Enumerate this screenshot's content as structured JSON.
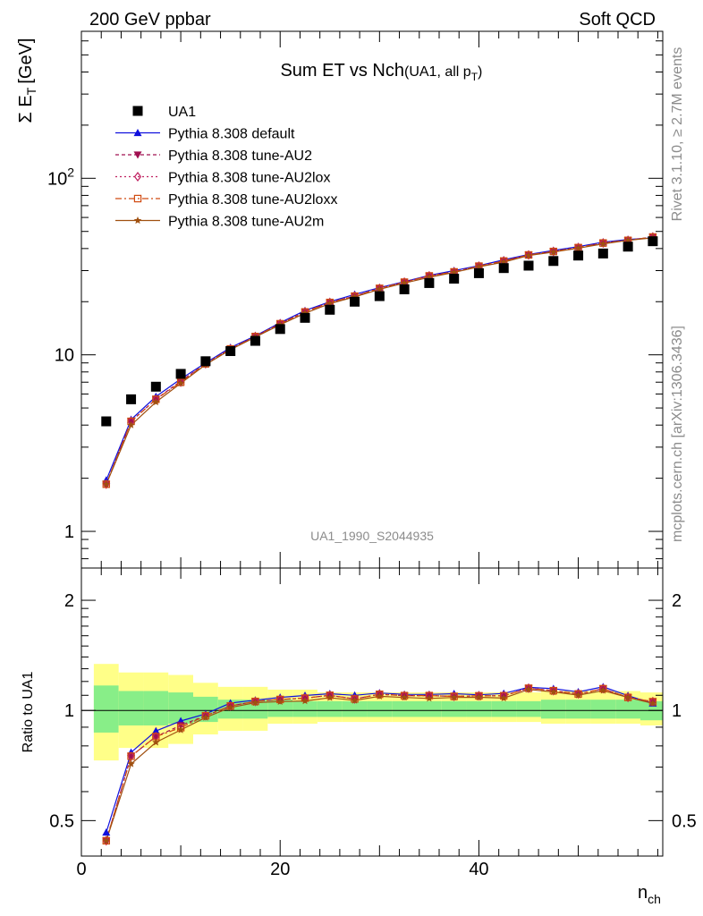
{
  "header": {
    "left": "200 GeV ppbar",
    "right": "Soft QCD"
  },
  "side_text": {
    "rivet": "Rivet 3.1.10, ≥ 2.7M events",
    "mcplots": "mcplots.cern.ch [arXiv:1306.3436]"
  },
  "chart_data": {
    "type": "scatter",
    "title_main": "Sum ET vs Nch",
    "title_sub": "(UA1, all p",
    "title_sub_subscript": "T",
    "title_sub_end": ")",
    "analysis_tag": "UA1_1990_S2044935",
    "ylabel_main": "Σ E",
    "ylabel_sub": "T",
    "ylabel_unit": "[GeV]",
    "ratio_ylabel": "Ratio to UA1",
    "xlabel_main": "n",
    "xlabel_sub": "ch",
    "xlim": [
      0,
      58.5
    ],
    "ylim": [
      0.62,
      680
    ],
    "ylog": true,
    "ratio_ylim": [
      0.4,
      2.45
    ],
    "ratio_ylog": true,
    "x_ticks": [
      "0",
      "20",
      "40"
    ],
    "y_ticks": [
      {
        "v": 1,
        "label": "1"
      },
      {
        "v": 10,
        "label": "10"
      },
      {
        "v": 100,
        "label": "10",
        "sup": "2"
      }
    ],
    "ratio_ticks": [
      {
        "v": 0.5,
        "label": "0.5"
      },
      {
        "v": 1,
        "label": "1"
      },
      {
        "v": 2,
        "label": "2"
      }
    ],
    "x": [
      2.5,
      5,
      7.5,
      10,
      12.5,
      15,
      17.5,
      20,
      22.5,
      25,
      27.5,
      30,
      32.5,
      35,
      37.5,
      40,
      42.5,
      45,
      47.5,
      50,
      52.5,
      55,
      57.5
    ],
    "data": {
      "name": "UA1",
      "values": [
        4.2,
        5.6,
        6.6,
        7.8,
        9.2,
        10.5,
        12.0,
        14.0,
        16.2,
        18.0,
        20.0,
        21.5,
        23.5,
        25.5,
        27.0,
        29.0,
        31.0,
        32.0,
        34.0,
        36.5,
        37.5,
        41.0,
        44.0
      ],
      "band_inner": [
        [
          0.87,
          1.17
        ],
        [
          0.91,
          1.13
        ],
        [
          0.91,
          1.13
        ],
        [
          0.92,
          1.12
        ],
        [
          0.93,
          1.09
        ],
        [
          0.95,
          1.07
        ],
        [
          0.95,
          1.07
        ],
        [
          0.96,
          1.07
        ],
        [
          0.96,
          1.06
        ],
        [
          0.96,
          1.06
        ],
        [
          0.96,
          1.06
        ],
        [
          0.96,
          1.06
        ],
        [
          0.96,
          1.06
        ],
        [
          0.96,
          1.06
        ],
        [
          0.96,
          1.06
        ],
        [
          0.96,
          1.06
        ],
        [
          0.96,
          1.06
        ],
        [
          0.96,
          1.06
        ],
        [
          0.95,
          1.07
        ],
        [
          0.95,
          1.07
        ],
        [
          0.95,
          1.07
        ],
        [
          0.95,
          1.07
        ],
        [
          0.94,
          1.06
        ]
      ],
      "band_outer": [
        [
          0.73,
          1.34
        ],
        [
          0.79,
          1.27
        ],
        [
          0.79,
          1.27
        ],
        [
          0.81,
          1.25
        ],
        [
          0.86,
          1.19
        ],
        [
          0.88,
          1.16
        ],
        [
          0.88,
          1.16
        ],
        [
          0.92,
          1.14
        ],
        [
          0.92,
          1.14
        ],
        [
          0.93,
          1.12
        ],
        [
          0.93,
          1.12
        ],
        [
          0.93,
          1.12
        ],
        [
          0.93,
          1.12
        ],
        [
          0.93,
          1.12
        ],
        [
          0.93,
          1.12
        ],
        [
          0.93,
          1.12
        ],
        [
          0.93,
          1.12
        ],
        [
          0.93,
          1.12
        ],
        [
          0.92,
          1.13
        ],
        [
          0.92,
          1.13
        ],
        [
          0.92,
          1.13
        ],
        [
          0.92,
          1.13
        ],
        [
          0.91,
          1.12
        ]
      ]
    },
    "series": [
      {
        "name": "Pythia 8.308 default",
        "color": "#1010dd",
        "dash": "none",
        "marker": "triangle-up",
        "values": [
          1.95,
          4.3,
          5.8,
          7.3,
          9.0,
          11.0,
          12.8,
          15.2,
          17.8,
          20.0,
          22.0,
          24.0,
          26.0,
          28.2,
          30.0,
          32.0,
          34.5,
          37.0,
          39.0,
          41.0,
          43.5,
          45.0,
          46.0
        ]
      },
      {
        "name": "Pythia 8.308 tune-AU2",
        "color": "#a01050",
        "dash": "4,3",
        "marker": "triangle-down",
        "values": [
          1.85,
          4.2,
          5.6,
          7.1,
          8.9,
          10.8,
          12.7,
          15.0,
          17.5,
          19.8,
          21.5,
          23.8,
          25.8,
          28.0,
          29.5,
          31.8,
          34.0,
          36.8,
          38.5,
          40.5,
          43.0,
          44.5,
          46.5
        ]
      },
      {
        "name": "Pythia 8.308 tune-AU2lox",
        "color": "#c02060",
        "dash": "2,3",
        "marker": "diamond-open",
        "values": [
          1.85,
          4.2,
          5.6,
          7.0,
          8.9,
          10.8,
          12.7,
          15.0,
          17.5,
          19.8,
          21.5,
          23.8,
          25.8,
          28.0,
          29.5,
          31.8,
          34.0,
          36.8,
          38.5,
          40.5,
          43.0,
          44.5,
          46.5
        ]
      },
      {
        "name": "Pythia 8.308 tune-AU2loxx",
        "color": "#d04a10",
        "dash": "7,3,2,3",
        "marker": "square-open",
        "values": [
          1.85,
          4.2,
          5.6,
          7.0,
          8.9,
          10.8,
          12.7,
          15.0,
          17.5,
          19.8,
          21.5,
          23.8,
          25.8,
          28.0,
          29.5,
          31.8,
          34.0,
          36.8,
          38.5,
          40.5,
          43.0,
          44.5,
          46.5
        ]
      },
      {
        "name": "Pythia 8.308 tune-AU2m",
        "color": "#a05010",
        "dash": "none",
        "marker": "star",
        "values": [
          1.85,
          4.0,
          5.4,
          6.9,
          8.8,
          10.7,
          12.6,
          14.8,
          17.2,
          19.5,
          21.3,
          23.5,
          25.5,
          27.5,
          29.3,
          31.5,
          33.5,
          36.5,
          38.2,
          40.2,
          42.5,
          44.5,
          46.0
        ]
      }
    ],
    "legend_position": "upper-left",
    "grid": false,
    "colors": {
      "data_marker": "#000000",
      "band_outer": "#ffff88",
      "band_inner": "#88ee88"
    }
  }
}
